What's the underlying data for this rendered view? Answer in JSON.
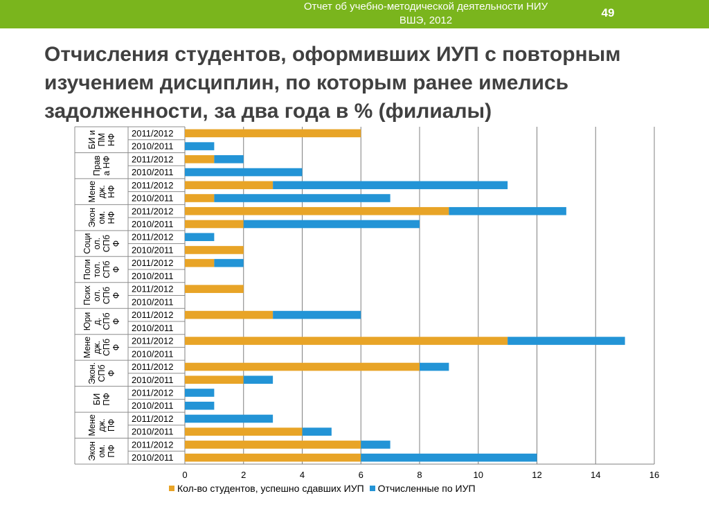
{
  "header": {
    "report_line1": "Отчет об учебно-методической деятельности НИУ",
    "report_line2": "ВШЭ, 2012",
    "page_number": "49",
    "bar_color": "#7ab51d"
  },
  "slide": {
    "title": "Отчисления студентов, оформивших ИУП с повторным изучением дисциплин, по которым ранее имелись задолженности, за два года в % (филиалы)"
  },
  "chart_data": {
    "type": "bar",
    "orientation": "horizontal",
    "stacked": true,
    "xlim": [
      0,
      16
    ],
    "xticks": [
      "0",
      "2",
      "4",
      "6",
      "8",
      "10",
      "12",
      "14",
      "16"
    ],
    "grid": true,
    "legend_position": "bottom",
    "groups": [
      {
        "label_lines": [
          "БИ и",
          "ПМ",
          "НФ"
        ],
        "rows": [
          {
            "year": "2011/2012",
            "passed": 6,
            "expelled": 0
          },
          {
            "year": "2010/2011",
            "passed": 0,
            "expelled": 1
          }
        ]
      },
      {
        "label_lines": [
          "Прав",
          "а НФ"
        ],
        "rows": [
          {
            "year": "2011/2012",
            "passed": 1,
            "expelled": 1
          },
          {
            "year": "2010/2011",
            "passed": 0,
            "expelled": 4
          }
        ]
      },
      {
        "label_lines": [
          "Мене",
          "дж.",
          "НФ"
        ],
        "rows": [
          {
            "year": "2011/2012",
            "passed": 3,
            "expelled": 8
          },
          {
            "year": "2010/2011",
            "passed": 1,
            "expelled": 6
          }
        ]
      },
      {
        "label_lines": [
          "Экон",
          "ом.",
          "НФ"
        ],
        "rows": [
          {
            "year": "2011/2012",
            "passed": 9,
            "expelled": 4
          },
          {
            "year": "2010/2011",
            "passed": 2,
            "expelled": 6
          }
        ]
      },
      {
        "label_lines": [
          "Соци",
          "ол.",
          "СПб",
          "Ф"
        ],
        "rows": [
          {
            "year": "2011/2012",
            "passed": 0,
            "expelled": 1
          },
          {
            "year": "2010/2011",
            "passed": 2,
            "expelled": 0
          }
        ]
      },
      {
        "label_lines": [
          "Поли",
          "тол.",
          "СПб",
          "Ф"
        ],
        "rows": [
          {
            "year": "2011/2012",
            "passed": 1,
            "expelled": 1
          },
          {
            "year": "2010/2011",
            "passed": 0,
            "expelled": 0
          }
        ]
      },
      {
        "label_lines": [
          "Псих",
          "ол.",
          "СПб",
          "Ф"
        ],
        "rows": [
          {
            "year": "2011/2012",
            "passed": 2,
            "expelled": 0
          },
          {
            "year": "2010/2011",
            "passed": 0,
            "expelled": 0
          }
        ]
      },
      {
        "label_lines": [
          "Юри",
          "д.",
          "СПб",
          "Ф"
        ],
        "rows": [
          {
            "year": "2011/2012",
            "passed": 3,
            "expelled": 3
          },
          {
            "year": "2010/2011",
            "passed": 0,
            "expelled": 0
          }
        ]
      },
      {
        "label_lines": [
          "Мене",
          "дж.",
          "СПб",
          "Ф"
        ],
        "rows": [
          {
            "year": "2011/2012",
            "passed": 11,
            "expelled": 4
          },
          {
            "year": "2010/2011",
            "passed": 0,
            "expelled": 0
          }
        ]
      },
      {
        "label_lines": [
          "Экон.",
          "СПб",
          "Ф"
        ],
        "rows": [
          {
            "year": "2011/2012",
            "passed": 8,
            "expelled": 1
          },
          {
            "year": "2010/2011",
            "passed": 2,
            "expelled": 1
          }
        ]
      },
      {
        "label_lines": [
          "БИ",
          "ПФ"
        ],
        "rows": [
          {
            "year": "2011/2012",
            "passed": 0,
            "expelled": 1
          },
          {
            "year": "2010/2011",
            "passed": 0,
            "expelled": 1
          }
        ]
      },
      {
        "label_lines": [
          "Мене",
          "дж.",
          "ПФ"
        ],
        "rows": [
          {
            "year": "2011/2012",
            "passed": 0,
            "expelled": 3
          },
          {
            "year": "2010/2011",
            "passed": 4,
            "expelled": 1
          }
        ]
      },
      {
        "label_lines": [
          "Экон",
          "ом.",
          "ПФ"
        ],
        "rows": [
          {
            "year": "2011/2012",
            "passed": 6,
            "expelled": 1
          },
          {
            "year": "2010/2011",
            "passed": 6,
            "expelled": 6
          }
        ]
      }
    ],
    "series": [
      {
        "key": "passed",
        "name": "Кол-во студентов, успешно сдавших ИУП",
        "color": "#e8a427"
      },
      {
        "key": "expelled",
        "name": "Отчисленные по ИУП",
        "color": "#2394d6"
      }
    ]
  }
}
